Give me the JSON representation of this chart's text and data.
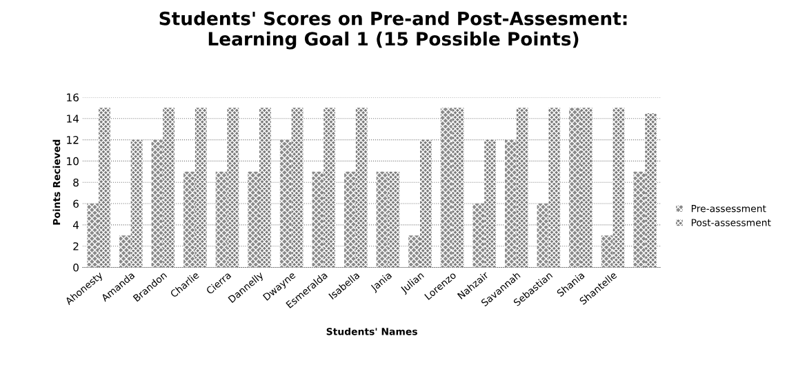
{
  "chart_data": {
    "type": "bar",
    "title": "Students' Scores on Pre-and Post-Assesment:\nLearning Goal 1 (15 Possible Points)",
    "xlabel": "Students' Names",
    "ylabel": "Points Recieved",
    "categories": [
      "Ahonesty",
      "Amanda",
      "Brandon",
      "Charlie",
      "Cierra",
      "Dannelly",
      "Dwayne",
      "Esmeralda",
      "Isabella",
      "Jania",
      "Julian",
      "Lorenzo",
      "Nahzair",
      "Savannah",
      "Sebastian",
      "Shania",
      "Shantelle",
      null
    ],
    "series": [
      {
        "name": "Pre-assessment",
        "color": "#8a8a8a",
        "values": [
          6,
          3,
          12,
          9,
          9,
          9,
          12,
          9,
          9,
          9,
          3,
          15,
          6,
          12,
          6,
          15,
          3,
          9
        ]
      },
      {
        "name": "Post-assessment",
        "color": "#7a7a7a",
        "values": [
          15,
          12,
          15,
          15,
          15,
          15,
          15,
          15,
          15,
          9,
          12,
          15,
          12,
          15,
          15,
          15,
          15,
          14.5
        ]
      }
    ],
    "ylim": [
      0,
      16
    ],
    "yticks": [
      0,
      2,
      4,
      6,
      8,
      10,
      12,
      14,
      16
    ],
    "grid": "y",
    "legend": "right"
  }
}
